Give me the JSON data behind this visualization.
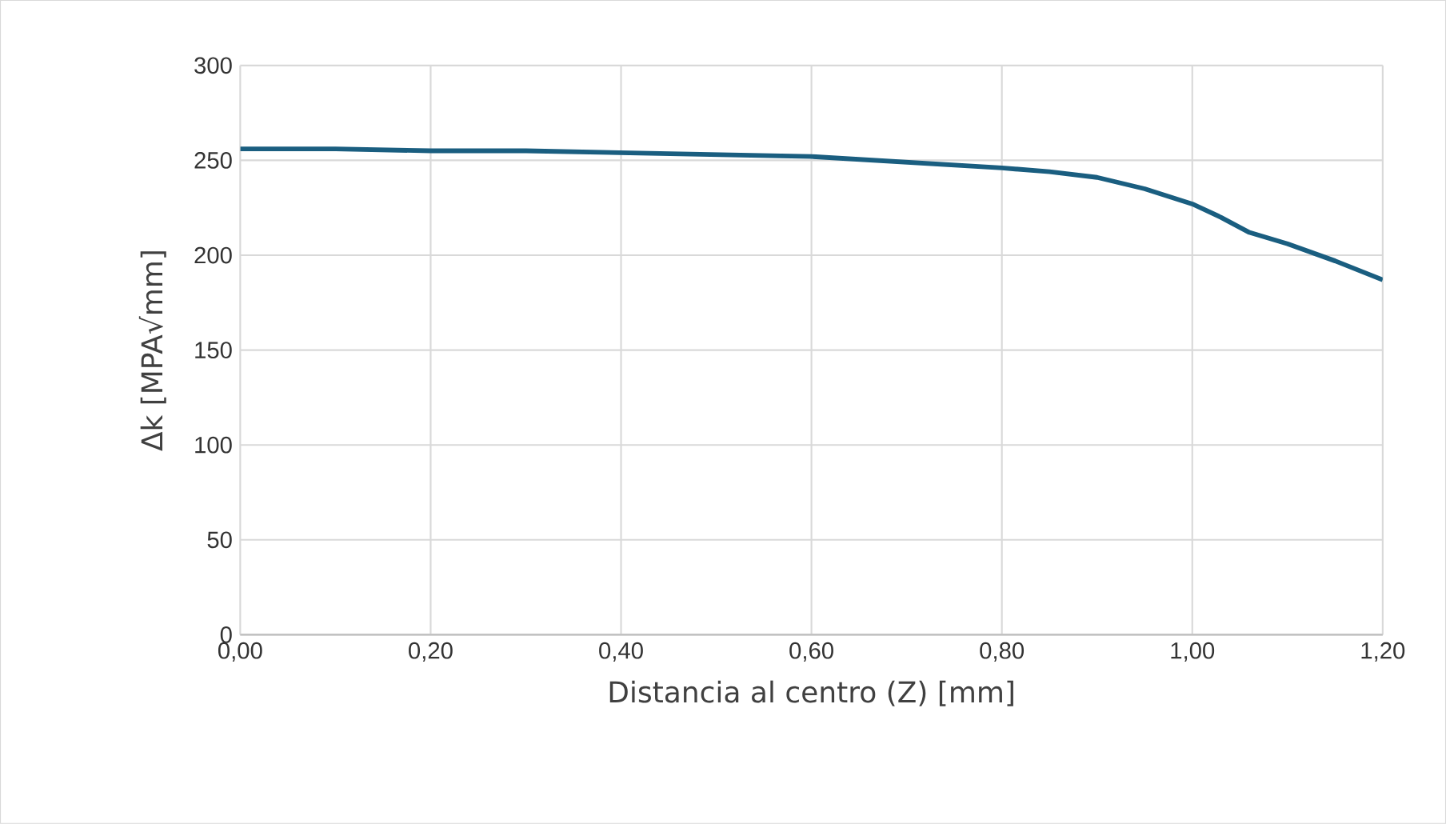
{
  "chart_data": {
    "type": "line",
    "xlabel": "Distancia al centro (Z) [mm]",
    "ylabel": "Δk  [MPA√mm]",
    "x": [
      0,
      0.1,
      0.2,
      0.3,
      0.4,
      0.5,
      0.6,
      0.7,
      0.8,
      0.85,
      0.9,
      0.95,
      1.0,
      1.03,
      1.06,
      1.1,
      1.15,
      1.2
    ],
    "series": [
      {
        "color": "#1a5e80",
        "values": [
          256,
          256,
          255,
          255,
          254,
          253,
          252,
          249,
          246,
          244,
          241,
          235,
          227,
          220,
          212,
          206,
          197,
          187
        ]
      }
    ],
    "xlim": [
      0,
      1.2
    ],
    "ylim": [
      0,
      300
    ],
    "xticks": [
      {
        "value": 0,
        "label": "0,00"
      },
      {
        "value": 0.2,
        "label": "0,20"
      },
      {
        "value": 0.4,
        "label": "0,40"
      },
      {
        "value": 0.6,
        "label": "0,60"
      },
      {
        "value": 0.8,
        "label": "0,80"
      },
      {
        "value": 1.0,
        "label": "1,00"
      },
      {
        "value": 1.2,
        "label": "1,20"
      }
    ],
    "yticks": [
      0,
      50,
      100,
      150,
      200,
      250,
      300
    ],
    "grid": true,
    "marker": "none",
    "line_style": "solid"
  }
}
